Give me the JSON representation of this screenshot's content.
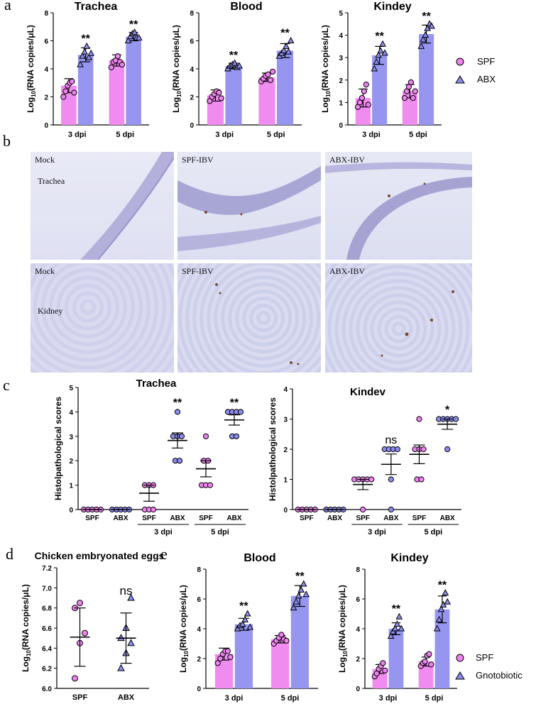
{
  "colors": {
    "spf": "#ee82ee",
    "abx": "#8c8cee",
    "spf_bar": "#f08cf0",
    "abx_bar": "#9696f0"
  },
  "panel_labels": [
    "a",
    "b",
    "c",
    "d",
    "e"
  ],
  "legend_a": {
    "spf": "SPF",
    "abx": "ABX"
  },
  "legend_e": {
    "spf": "SPF",
    "gnoto": "Gnotobiotic"
  },
  "micrographs": {
    "row1": [
      "Mock",
      "SPF-IBV",
      "ABX-IBV"
    ],
    "row2": [
      "Mock",
      "SPF-IBV",
      "ABX-IBV"
    ],
    "row1_tissue": "Trachea",
    "row2_tissue": "Kidney"
  },
  "chart_data": [
    {
      "id": "a1",
      "type": "bar",
      "title": "Trachea",
      "ylabel": "Log10(RNA copies/μL)",
      "ylim": [
        0,
        8
      ],
      "yticks": [
        0,
        2,
        4,
        6,
        8
      ],
      "categories": [
        "3 dpi",
        "5 dpi"
      ],
      "series": [
        {
          "name": "SPF",
          "values": [
            2.8,
            4.6
          ],
          "err": [
            0.5,
            0.4
          ],
          "points": [
            [
              2.0,
              2.4,
              2.8,
              3.0,
              3.1,
              2.3
            ],
            [
              4.1,
              4.5,
              4.6,
              4.9,
              4.5,
              4.3
            ]
          ]
        },
        {
          "name": "ABX",
          "values": [
            5.0,
            6.3
          ],
          "err": [
            0.5,
            0.3
          ],
          "points": [
            [
              4.3,
              4.9,
              5.2,
              5.6,
              4.8,
              5.1
            ],
            [
              6.0,
              6.3,
              6.5,
              6.6,
              6.2,
              6.2
            ]
          ]
        }
      ],
      "significance": [
        "**",
        "**"
      ]
    },
    {
      "id": "a2",
      "type": "bar",
      "title": "Blood",
      "ylabel": "Log10(RNA copies/μL)",
      "ylim": [
        0,
        8
      ],
      "yticks": [
        0,
        2,
        4,
        6,
        8
      ],
      "categories": [
        "3 dpi",
        "5 dpi"
      ],
      "series": [
        {
          "name": "SPF",
          "values": [
            2.1,
            3.4
          ],
          "err": [
            0.4,
            0.3
          ],
          "points": [
            [
              1.7,
              2.0,
              2.2,
              2.4,
              2.3,
              1.9
            ],
            [
              3.1,
              3.3,
              3.5,
              3.6,
              3.2,
              3.8
            ]
          ]
        },
        {
          "name": "ABX",
          "values": [
            4.2,
            5.3
          ],
          "err": [
            0.2,
            0.5
          ],
          "points": [
            [
              4.0,
              4.2,
              4.3,
              4.4,
              4.1,
              4.2
            ],
            [
              4.9,
              5.1,
              5.3,
              5.6,
              5.2,
              6.0
            ]
          ]
        }
      ],
      "significance": [
        "**",
        "**"
      ]
    },
    {
      "id": "a3",
      "type": "bar",
      "title": "Kindey",
      "ylabel": "Log10(RNA copies/μL)",
      "ylim": [
        0,
        5
      ],
      "yticks": [
        0,
        1,
        2,
        3,
        4,
        5
      ],
      "categories": [
        "3 dpi",
        "5 dpi"
      ],
      "series": [
        {
          "name": "SPF",
          "values": [
            1.2,
            1.5
          ],
          "err": [
            0.4,
            0.3
          ],
          "points": [
            [
              0.8,
              1.0,
              1.2,
              1.5,
              1.8,
              0.9
            ],
            [
              1.2,
              1.5,
              1.7,
              1.9,
              1.2,
              1.5
            ]
          ]
        },
        {
          "name": "ABX",
          "values": [
            3.1,
            4.05
          ],
          "err": [
            0.4,
            0.4
          ],
          "points": [
            [
              2.5,
              2.8,
              3.1,
              3.3,
              3.6,
              3.2
            ],
            [
              3.5,
              3.8,
              4.0,
              4.3,
              4.5,
              4.4
            ]
          ]
        }
      ],
      "significance": [
        "**",
        "**"
      ]
    },
    {
      "id": "c1",
      "type": "scatter",
      "title": "Trachea",
      "ylabel": "Histolpathological scores",
      "ylim": [
        0,
        5
      ],
      "yticks": [
        0,
        1,
        2,
        3,
        4,
        5
      ],
      "categories": [
        "SPF",
        "ABX",
        "SPF",
        "ABX",
        "SPF",
        "ABX"
      ],
      "groups": [
        "3 dpi",
        "5 dpi"
      ],
      "points": [
        [
          0,
          0,
          0,
          0,
          0
        ],
        [
          0,
          0,
          0,
          0,
          0
        ],
        [
          0,
          0,
          1,
          1,
          1,
          0
        ],
        [
          2,
          3,
          3,
          3,
          2,
          4
        ],
        [
          1,
          1,
          2,
          2,
          3,
          1
        ],
        [
          3,
          4,
          4,
          4,
          4,
          3
        ]
      ],
      "means": [
        0,
        0,
        0.67,
        2.83,
        1.67,
        3.67
      ],
      "sem": [
        0,
        0,
        0.33,
        0.31,
        0.33,
        0.21
      ],
      "significance": [
        "",
        "",
        "",
        "**",
        "",
        "**"
      ]
    },
    {
      "id": "c2",
      "type": "scatter",
      "title": "Kindev",
      "ylabel": "Histolpathological scores",
      "ylim": [
        0,
        4
      ],
      "yticks": [
        0,
        1,
        2,
        3,
        4
      ],
      "categories": [
        "SPF",
        "ABX",
        "SPF",
        "ABX",
        "SPF",
        "ABX"
      ],
      "groups": [
        "3 dpi",
        "5 dpi"
      ],
      "points": [
        [
          0,
          0,
          0,
          0,
          0
        ],
        [
          0,
          0,
          0,
          0,
          0
        ],
        [
          0,
          1,
          1,
          1,
          1,
          1
        ],
        [
          0,
          1,
          2,
          2,
          2,
          2
        ],
        [
          1,
          1,
          2,
          2,
          2,
          3
        ],
        [
          2,
          3,
          3,
          3,
          3,
          3
        ]
      ],
      "means": [
        0,
        0,
        0.83,
        1.5,
        1.83,
        2.83
      ],
      "sem": [
        0,
        0,
        0.17,
        0.34,
        0.31,
        0.17
      ],
      "significance": [
        "",
        "",
        "",
        "ns",
        "",
        "*"
      ]
    },
    {
      "id": "d",
      "type": "scatter",
      "title": "Chicken embryonated eggs",
      "ylabel": "Log10(RNA copies/μL)",
      "ylim": [
        6.0,
        7.2
      ],
      "yticks": [
        6.0,
        6.2,
        6.4,
        6.6,
        6.8,
        7.0,
        7.2
      ],
      "categories": [
        "SPF",
        "ABX"
      ],
      "means": [
        6.51,
        6.5
      ],
      "sd": [
        0.29,
        0.25
      ],
      "points": [
        [
          6.1,
          6.45,
          6.55,
          6.8,
          6.85
        ],
        [
          6.2,
          6.35,
          6.45,
          6.5,
          6.6,
          6.9
        ]
      ],
      "significance": [
        "",
        "ns"
      ]
    },
    {
      "id": "e1",
      "type": "bar",
      "title": "Blood",
      "ylabel": "Log10(RNA copies/μL)",
      "ylim": [
        0,
        8
      ],
      "yticks": [
        0,
        2,
        4,
        6,
        8
      ],
      "categories": [
        "3 dpi",
        "5 dpi"
      ],
      "series": [
        {
          "name": "SPF",
          "values": [
            2.3,
            3.3
          ],
          "err": [
            0.4,
            0.25
          ],
          "points": [
            [
              1.7,
              2.0,
              2.3,
              2.5,
              2.5,
              2.1
            ],
            [
              3.0,
              3.2,
              3.4,
              3.6,
              3.3,
              3.2
            ]
          ]
        },
        {
          "name": "Gnotobiotic",
          "values": [
            4.3,
            6.2
          ],
          "err": [
            0.4,
            0.7
          ],
          "points": [
            [
              4.0,
              4.2,
              4.3,
              4.6,
              5.0,
              4.1
            ],
            [
              5.4,
              5.8,
              6.2,
              6.6,
              7.0,
              6.3
            ]
          ]
        }
      ],
      "significance": [
        "**",
        "**"
      ]
    },
    {
      "id": "e2",
      "type": "bar",
      "title": "Kindey",
      "ylabel": "Log10(RNA copies/μL)",
      "ylim": [
        0,
        8
      ],
      "yticks": [
        0,
        2,
        4,
        6,
        8
      ],
      "categories": [
        "3 dpi",
        "5 dpi"
      ],
      "series": [
        {
          "name": "SPF",
          "values": [
            1.3,
            1.8
          ],
          "err": [
            0.3,
            0.3
          ],
          "points": [
            [
              0.8,
              1.0,
              1.3,
              1.5,
              1.7,
              1.2
            ],
            [
              1.5,
              1.7,
              1.8,
              2.2,
              2.3,
              1.6
            ]
          ]
        },
        {
          "name": "Gnotobiotic",
          "values": [
            4.0,
            5.3
          ],
          "err": [
            0.4,
            0.9
          ],
          "points": [
            [
              3.5,
              3.8,
              4.0,
              4.3,
              4.8,
              4.0
            ],
            [
              4.0,
              4.6,
              5.3,
              5.6,
              6.4,
              5.8
            ]
          ]
        }
      ],
      "significance": [
        "**",
        "**"
      ]
    }
  ]
}
